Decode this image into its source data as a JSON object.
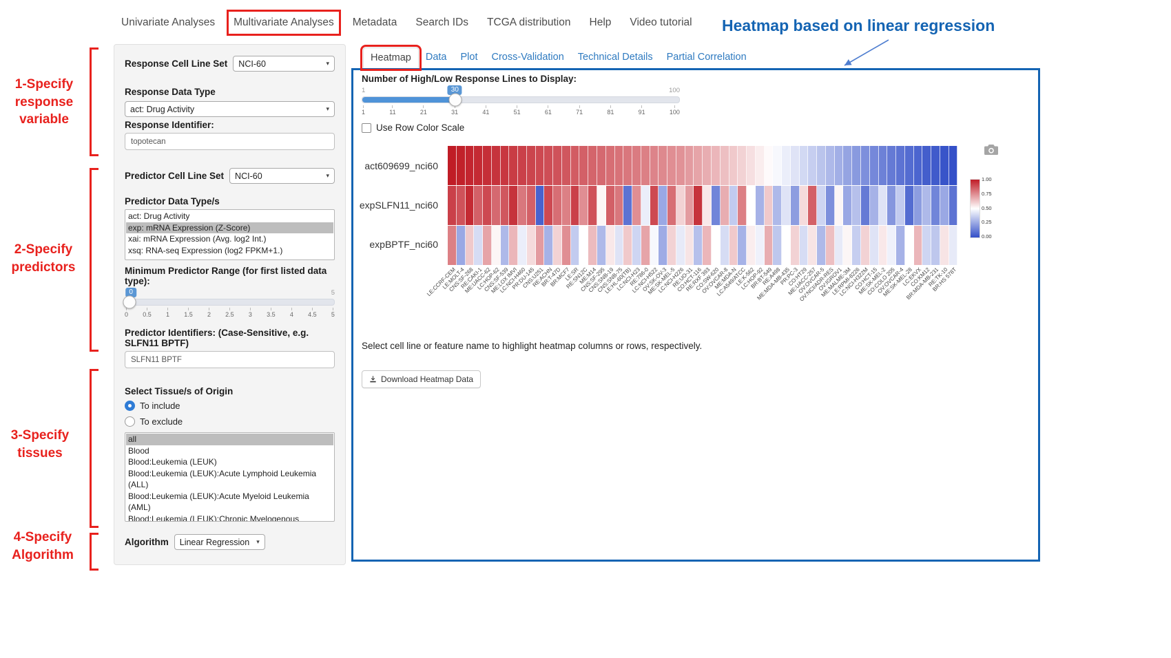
{
  "nav": {
    "items": [
      "Univariate Analyses",
      "Multivariate Analyses",
      "Metadata",
      "Search IDs",
      "TCGA distribution",
      "Help",
      "Video tutorial"
    ],
    "highlighted": 1
  },
  "annotations": {
    "heading": "Heatmap based on linear regression",
    "step1": "1-Specify\nresponse\nvariable",
    "step2": "2-Specify\npredictors",
    "step3": "3-Specify\ntissues",
    "step4": "4-Specify\nAlgorithm",
    "red_color": "#e8211d",
    "blue_color": "#1464b3"
  },
  "sidebar": {
    "response_cell_line_set": {
      "label": "Response Cell Line Set",
      "value": "NCI-60"
    },
    "response_data_type": {
      "label": "Response Data Type",
      "value": "act: Drug Activity"
    },
    "response_identifier": {
      "label": "Response Identifier:",
      "value": "topotecan"
    },
    "predictor_cell_line_set": {
      "label": "Predictor Cell Line Set",
      "value": "NCI-60"
    },
    "predictor_data_types": {
      "label": "Predictor Data Type/s",
      "options": [
        "act: Drug Activity",
        "exp: mRNA Expression (Z-Score)",
        "xai: mRNA Expression (Avg. log2 Int.)",
        "xsq: RNA-seq Expression (log2 FPKM+1.)"
      ],
      "selected_index": 1
    },
    "min_predictor_range": {
      "label": "Minimum Predictor Range (for first listed data type):",
      "value": 0,
      "min": 0,
      "max": 5,
      "badge": "0",
      "max_label": "5",
      "ticks": [
        "0",
        "0.5",
        "1",
        "1.5",
        "2",
        "2.5",
        "3",
        "3.5",
        "4",
        "4.5",
        "5"
      ]
    },
    "predictor_identifiers": {
      "label": "Predictor Identifiers: (Case-Sensitive, e.g. SLFN11 BPTF)",
      "value": "SLFN11 BPTF"
    },
    "tissue_origin": {
      "label": "Select Tissue/s of Origin",
      "include_label": "To include",
      "exclude_label": "To exclude",
      "selected": "include",
      "options": [
        "all",
        "Blood",
        "Blood:Leukemia (LEUK)",
        "Blood:Leukemia (LEUK):Acute Lymphoid Leukemia (ALL)",
        "Blood:Leukemia (LEUK):Acute Myeloid Leukemia (AML)",
        "Blood:Leukemia (LEUK):Chronic Myelogenous Leukemia (CML)"
      ],
      "selected_index": 0
    },
    "algorithm": {
      "label": "Algorithm",
      "value": "Linear Regression"
    }
  },
  "main": {
    "tabs": [
      "Heatmap",
      "Data",
      "Plot",
      "Cross-Validation",
      "Technical Details",
      "Partial Correlation"
    ],
    "active_tab": 0,
    "lines_slider": {
      "label": "Number of High/Low Response Lines to Display:",
      "min": 1,
      "max": 100,
      "value": 30,
      "min_label": "1",
      "max_label": "100",
      "ticks": [
        "1",
        "11",
        "21",
        "31",
        "41",
        "51",
        "61",
        "71",
        "81",
        "91",
        "100"
      ]
    },
    "row_color_scale_label": "Use Row Color Scale",
    "hint": "Select cell line or feature name to highlight heatmap columns or rows, respectively.",
    "download_button": "Download Heatmap Data"
  },
  "icons": {
    "camera": "camera-icon",
    "download": "download-icon",
    "caret": "caret-down-icon"
  },
  "chart_data": {
    "type": "heatmap",
    "rows": [
      "act609699_nci60",
      "expSLFN11_nci60",
      "expBPTF_nci60"
    ],
    "x": [
      "LE:CCRF-CEM",
      "LE:MOLT-4",
      "CNS:SF-268",
      "RE:CAKI-1",
      "ME:UACC-62",
      "LC:HOP-62",
      "CNS:SF-539",
      "ME:LOX IMVI",
      "LC:NCI-H460",
      "PR:DU-145",
      "CNS:U251",
      "RE:ACHN",
      "BR:T-47D",
      "BR:MCF7",
      "LE:SR",
      "RE:SN12C",
      "ME:M14",
      "CNS:SF-295",
      "CNS:SNB-19",
      "CNS:SNB-75",
      "LE:HL-60(TB)",
      "LC:NCI-H23",
      "RE:786-0",
      "LC:NCI-H522",
      "OV:SK-OV-3",
      "ME:SK-MEL-5",
      "LC:NCI-H226",
      "RE:UO-31",
      "CO:HCT-116",
      "RE:RXF 393",
      "CO:SW-620",
      "OV:OVCAR-8",
      "ME:MDA-N",
      "LC:A549/ATCC",
      "LE:K-562",
      "LC:HOP-92",
      "BR:BT-549",
      "RE:A498",
      "ME:MDA-MB-435",
      "PR:PC-3",
      "CO:HT29",
      "ME:UACC-257",
      "OV:OVCAR-5",
      "OV:NCI/ADR-RES",
      "OV:IGROV1",
      "ME:MALME-3M",
      "LE:RPMI-8226",
      "LC:NCI-H322M",
      "CO:HCT-15",
      "ME:SK-MEL-2",
      "CO:COLO 205",
      "OV:OVCAR-4",
      "ME:SK-MEL-28",
      "LC:EKVX",
      "CO:KM12",
      "BR:MDA-MB-231",
      "RE:TK-10",
      "BR:HS 578T"
    ],
    "values": [
      [
        1.0,
        0.99,
        0.98,
        0.97,
        0.96,
        0.95,
        0.94,
        0.93,
        0.92,
        0.91,
        0.9,
        0.89,
        0.88,
        0.87,
        0.86,
        0.85,
        0.84,
        0.83,
        0.82,
        0.81,
        0.8,
        0.79,
        0.78,
        0.77,
        0.76,
        0.75,
        0.74,
        0.72,
        0.7,
        0.68,
        0.66,
        0.64,
        0.62,
        0.6,
        0.57,
        0.54,
        0.51,
        0.48,
        0.45,
        0.42,
        0.39,
        0.36,
        0.33,
        0.3,
        0.27,
        0.24,
        0.21,
        0.18,
        0.16,
        0.14,
        0.12,
        0.1,
        0.08,
        0.06,
        0.04,
        0.03,
        0.01,
        0.0
      ],
      [
        0.92,
        0.88,
        0.97,
        0.85,
        0.9,
        0.83,
        0.87,
        0.95,
        0.8,
        0.85,
        0.05,
        0.9,
        0.82,
        0.78,
        0.92,
        0.75,
        0.88,
        0.52,
        0.85,
        0.8,
        0.1,
        0.75,
        0.45,
        0.9,
        0.25,
        0.82,
        0.6,
        0.72,
        0.95,
        0.55,
        0.15,
        0.68,
        0.35,
        0.78,
        0.5,
        0.28,
        0.62,
        0.3,
        0.42,
        0.22,
        0.58,
        0.85,
        0.38,
        0.18,
        0.52,
        0.25,
        0.32,
        0.12,
        0.28,
        0.42,
        0.2,
        0.35,
        0.08,
        0.22,
        0.3,
        0.15,
        0.25,
        0.1
      ],
      [
        0.78,
        0.25,
        0.62,
        0.4,
        0.7,
        0.52,
        0.3,
        0.66,
        0.45,
        0.58,
        0.72,
        0.28,
        0.6,
        0.75,
        0.35,
        0.5,
        0.65,
        0.3,
        0.55,
        0.42,
        0.62,
        0.38,
        0.7,
        0.48,
        0.26,
        0.6,
        0.44,
        0.56,
        0.32,
        0.66,
        0.5,
        0.4,
        0.62,
        0.28,
        0.54,
        0.46,
        0.68,
        0.34,
        0.5,
        0.6,
        0.4,
        0.56,
        0.3,
        0.64,
        0.44,
        0.52,
        0.36,
        0.6,
        0.42,
        0.55,
        0.46,
        0.28,
        0.5,
        0.66,
        0.38,
        0.34,
        0.56,
        0.44
      ]
    ],
    "colorscale": {
      "high": "#c01c26",
      "mid": "#ffffff",
      "low": "#3450c8",
      "min": 0,
      "max": 1
    },
    "legend_ticks": [
      "1.00",
      "0.75",
      "0.50",
      "0.25",
      "0.00"
    ]
  }
}
